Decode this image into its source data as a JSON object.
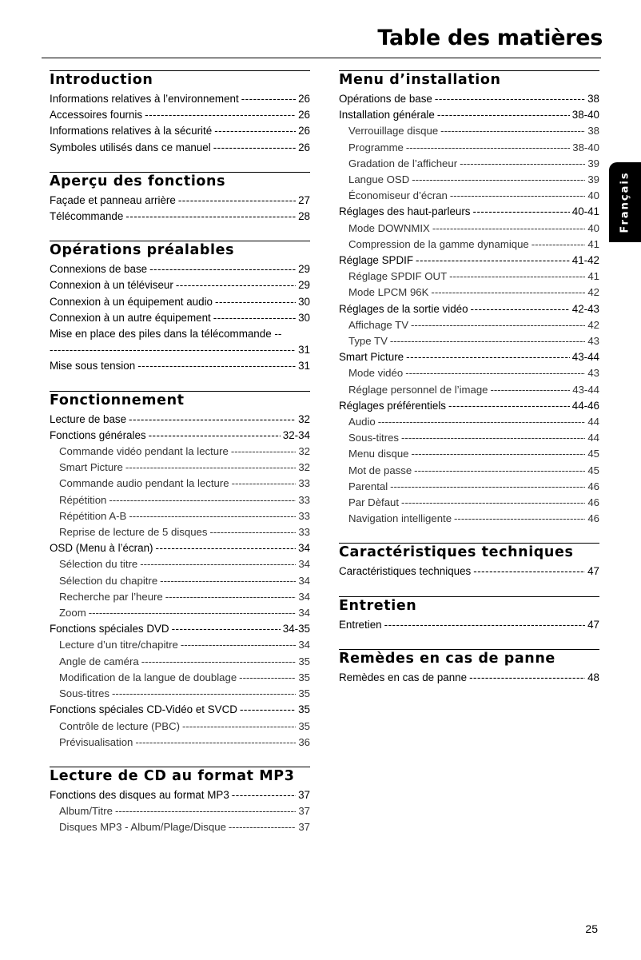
{
  "title": "Table des matières",
  "language_tab": "Français",
  "page_number": "25",
  "left_sections": [
    {
      "heading": "Introduction",
      "entries": [
        {
          "t": "Informations relatives à l’environnement",
          "p": "26"
        },
        {
          "t": "Accessoires fournis",
          "p": "26"
        },
        {
          "t": "Informations relatives à la sécurité",
          "p": "26"
        },
        {
          "t": "Symboles utilisés dans ce manuel",
          "p": "26"
        }
      ]
    },
    {
      "heading": "Aperçu des fonctions",
      "entries": [
        {
          "t": "Façade et panneau arrière",
          "p": "27"
        },
        {
          "t": "Télécommande",
          "p": "28"
        }
      ]
    },
    {
      "heading": "Opérations préalables",
      "entries": [
        {
          "t": "Connexions de base",
          "p": "29"
        },
        {
          "t": "Connexion à un téléviseur",
          "p": "29"
        },
        {
          "t": "Connexion à un équipement audio",
          "p": "30"
        },
        {
          "t": "Connexion à un autre équipement",
          "p": "30"
        },
        {
          "t": "Mise en place des piles dans la télécommande --",
          "p": "31",
          "wrap": true
        },
        {
          "t": "Mise sous tension",
          "p": "31"
        }
      ]
    },
    {
      "heading": "Fonctionnement",
      "entries": [
        {
          "t": "Lecture de base",
          "p": "32"
        },
        {
          "t": "Fonctions générales",
          "p": "32-34"
        },
        {
          "t": "Commande vidéo pendant la lecture",
          "p": "32",
          "sub": true
        },
        {
          "t": "Smart Picture",
          "p": "32",
          "sub": true
        },
        {
          "t": "Commande audio pendant la lecture",
          "p": "33",
          "sub": true
        },
        {
          "t": "Répétition",
          "p": "33",
          "sub": true
        },
        {
          "t": "Répétition A-B",
          "p": "33",
          "sub": true
        },
        {
          "t": "Reprise de lecture de 5 disques",
          "p": "33",
          "sub": true
        },
        {
          "t": "OSD (Menu à l’écran)",
          "p": "34"
        },
        {
          "t": "Sélection du titre",
          "p": "34",
          "sub": true
        },
        {
          "t": "Sélection du chapitre",
          "p": "34",
          "sub": true
        },
        {
          "t": "Recherche par l’heure",
          "p": "34",
          "sub": true
        },
        {
          "t": "Zoom",
          "p": "34",
          "sub": true
        },
        {
          "t": "Fonctions spéciales DVD",
          "p": "34-35"
        },
        {
          "t": "Lecture d’un titre/chapitre",
          "p": "34",
          "sub": true
        },
        {
          "t": "Angle de caméra",
          "p": "35",
          "sub": true
        },
        {
          "t": "Modification de la langue de doublage",
          "p": "35",
          "sub": true
        },
        {
          "t": "Sous-titres",
          "p": "35",
          "sub": true
        },
        {
          "t": "Fonctions spéciales CD-Vidéo et SVCD",
          "p": "35"
        },
        {
          "t": "Contrôle de lecture (PBC)",
          "p": "35",
          "sub": true
        },
        {
          "t": "Prévisualisation",
          "p": "36",
          "sub": true
        }
      ]
    },
    {
      "heading": "Lecture de CD au format MP3",
      "entries": [
        {
          "t": "Fonctions des disques au format MP3",
          "p": "37"
        },
        {
          "t": "Album/Titre",
          "p": "37",
          "sub": true
        },
        {
          "t": "Disques MP3 - Album/Plage/Disque",
          "p": "37",
          "sub": true
        }
      ]
    }
  ],
  "right_sections": [
    {
      "heading": "Menu d’installation",
      "entries": [
        {
          "t": "Opérations de base",
          "p": "38"
        },
        {
          "t": "Installation générale",
          "p": "38-40"
        },
        {
          "t": "Verrouillage disque",
          "p": "38",
          "sub": true
        },
        {
          "t": "Programme",
          "p": "38-40",
          "sub": true
        },
        {
          "t": "Gradation de l’afficheur",
          "p": "39",
          "sub": true
        },
        {
          "t": "Langue OSD",
          "p": "39",
          "sub": true
        },
        {
          "t": "Économiseur d’écran",
          "p": "40",
          "sub": true
        },
        {
          "t": "Réglages des haut-parleurs",
          "p": "40-41"
        },
        {
          "t": "Mode DOWNMIX",
          "p": "40",
          "sub": true
        },
        {
          "t": "Compression de la gamme dynamique",
          "p": "41",
          "sub": true
        },
        {
          "t": "Réglage SPDIF",
          "p": "41-42"
        },
        {
          "t": "Réglage SPDIF OUT",
          "p": "41",
          "sub": true
        },
        {
          "t": "Mode LPCM 96K",
          "p": "42",
          "sub": true
        },
        {
          "t": "Réglages de la sortie vidéo",
          "p": "42-43"
        },
        {
          "t": "Affichage TV",
          "p": "42",
          "sub": true
        },
        {
          "t": "Type TV",
          "p": "43",
          "sub": true
        },
        {
          "t": "Smart Picture",
          "p": "43-44"
        },
        {
          "t": "Mode vidéo",
          "p": "43",
          "sub": true
        },
        {
          "t": "Réglage personnel de l’image",
          "p": "43-44",
          "sub": true
        },
        {
          "t": "Réglages préférentiels",
          "p": "44-46"
        },
        {
          "t": "Audio",
          "p": "44",
          "sub": true
        },
        {
          "t": "Sous-titres",
          "p": "44",
          "sub": true
        },
        {
          "t": "Menu disque",
          "p": "45",
          "sub": true
        },
        {
          "t": "Mot de passe",
          "p": "45",
          "sub": true
        },
        {
          "t": "Parental",
          "p": "46",
          "sub": true
        },
        {
          "t": "Par Dèfaut",
          "p": "46",
          "sub": true
        },
        {
          "t": "Navigation intelligente",
          "p": "46",
          "sub": true
        }
      ]
    },
    {
      "heading": "Caractéristiques techniques",
      "entries": [
        {
          "t": "Caractéristiques techniques",
          "p": "47"
        }
      ]
    },
    {
      "heading": "Entretien",
      "entries": [
        {
          "t": "Entretien",
          "p": "47"
        }
      ]
    },
    {
      "heading": "Remèdes en cas de panne",
      "entries": [
        {
          "t": "Remèdes en cas de panne",
          "p": "48"
        }
      ]
    }
  ]
}
